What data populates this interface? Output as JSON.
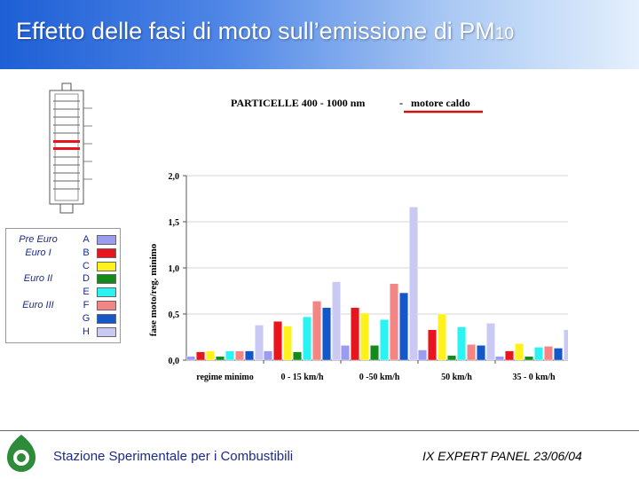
{
  "slide": {
    "title": "Effetto delle fasi di moto sull’emissione di PM",
    "title_subscript": "10",
    "footer_org": "Stazione Sperimentale per i Combustibili",
    "footer_event": "IX EXPERT PANEL 23/06/04"
  },
  "legend": {
    "groups": [
      {
        "label": "Pre Euro",
        "letters": [
          "A"
        ]
      },
      {
        "label": "Euro I",
        "letters": [
          "B",
          "C"
        ]
      },
      {
        "label": "Euro II",
        "letters": [
          "D",
          "E"
        ]
      },
      {
        "label": "Euro III",
        "letters": [
          "F",
          "G",
          "H"
        ]
      }
    ],
    "items": [
      {
        "letter": "A",
        "color": "#9b9bf0"
      },
      {
        "letter": "B",
        "color": "#e8141e"
      },
      {
        "letter": "C",
        "color": "#fff21c"
      },
      {
        "letter": "D",
        "color": "#138a1a"
      },
      {
        "letter": "E",
        "color": "#29f3f3"
      },
      {
        "letter": "F",
        "color": "#f38585"
      },
      {
        "letter": "G",
        "color": "#1457c8"
      },
      {
        "letter": "H",
        "color": "#c9c9f3"
      }
    ]
  },
  "chart_data": {
    "type": "bar",
    "title_left": "PARTICELLE 400 - 1000 nm",
    "title_sep": "-",
    "title_right": "motore caldo",
    "ylabel": "fase moto/reg. minimo",
    "xlabel": "",
    "ylim": [
      0,
      2.0
    ],
    "yticks": [
      "0,0",
      "0,5",
      "1,0",
      "1,5",
      "2,0"
    ],
    "ytick_values": [
      0,
      0.5,
      1.0,
      1.5,
      2.0
    ],
    "grid": true,
    "categories": [
      "regime minimo",
      "0 - 15 km/h",
      "0 -50 km/h",
      "50 km/h",
      "35 - 0 km/h"
    ],
    "series": [
      {
        "name": "A",
        "color": "#9b9bf0",
        "values": [
          0.04,
          0.1,
          0.16,
          0.11,
          0.04
        ]
      },
      {
        "name": "B",
        "color": "#e8141e",
        "values": [
          0.09,
          0.42,
          0.57,
          0.33,
          0.1
        ]
      },
      {
        "name": "C",
        "color": "#fff21c",
        "values": [
          0.1,
          0.37,
          0.51,
          0.5,
          0.18
        ]
      },
      {
        "name": "D",
        "color": "#138a1a",
        "values": [
          0.04,
          0.09,
          0.16,
          0.05,
          0.04
        ]
      },
      {
        "name": "E",
        "color": "#29f3f3",
        "values": [
          0.1,
          0.47,
          0.44,
          0.36,
          0.14
        ]
      },
      {
        "name": "F",
        "color": "#f38585",
        "values": [
          0.1,
          0.64,
          0.83,
          0.17,
          0.15
        ]
      },
      {
        "name": "G",
        "color": "#1457c8",
        "values": [
          0.1,
          0.57,
          0.73,
          0.16,
          0.13
        ]
      },
      {
        "name": "H",
        "color": "#c9c9f3",
        "values": [
          0.38,
          0.85,
          1.66,
          0.4,
          0.33
        ]
      }
    ]
  }
}
